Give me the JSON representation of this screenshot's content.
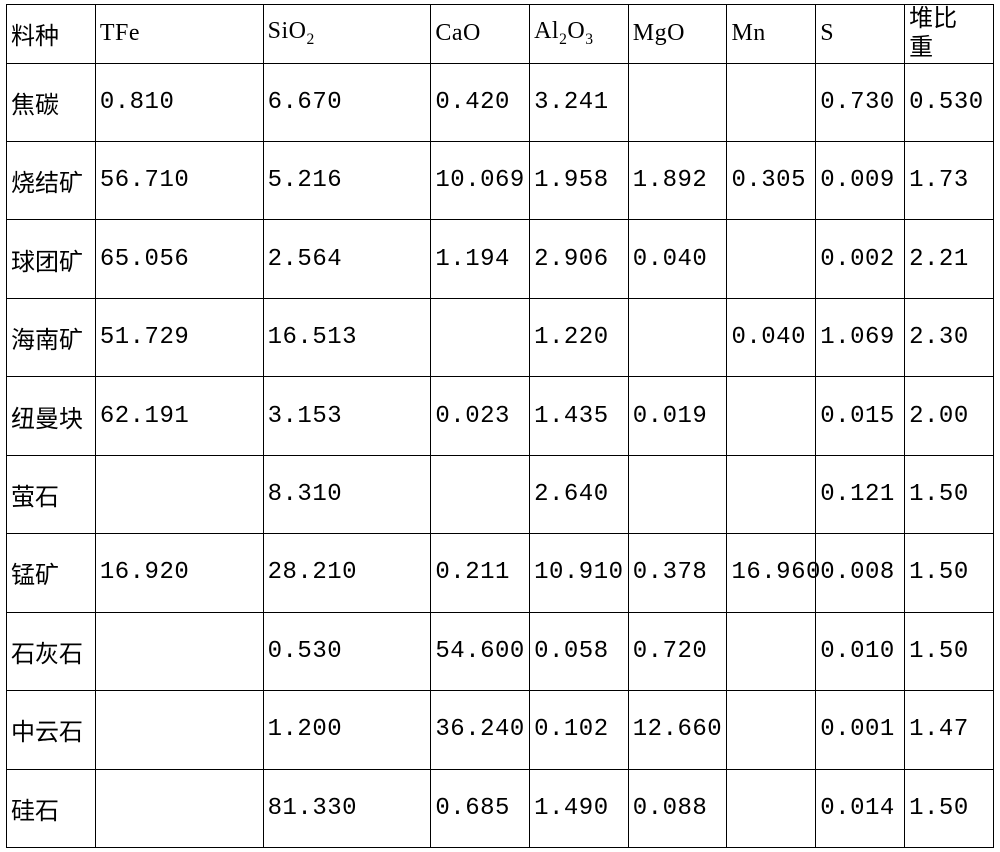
{
  "table": {
    "type": "table",
    "background_color": "#ffffff",
    "border_color": "#000000",
    "header_fontsize": 24,
    "cell_fontsize": 24,
    "cjk_font": "KaiTi",
    "number_font": "Courier New",
    "col_widths_pct": [
      9,
      17,
      17,
      10,
      10,
      10,
      9,
      9,
      9
    ],
    "columns": [
      {
        "key": "name",
        "label": "料种",
        "align": "left"
      },
      {
        "key": "TFe",
        "label": "TFe",
        "align": "left"
      },
      {
        "key": "SiO2",
        "label": "SiO₂",
        "align": "left"
      },
      {
        "key": "CaO",
        "label": "CaO",
        "align": "left"
      },
      {
        "key": "Al2O3",
        "label": "Al₂O₃",
        "align": "left"
      },
      {
        "key": "MgO",
        "label": "MgO",
        "align": "left"
      },
      {
        "key": "Mn",
        "label": "Mn",
        "align": "left"
      },
      {
        "key": "S",
        "label": "S",
        "align": "left"
      },
      {
        "key": "bulk",
        "label_line1": "堆比",
        "label_line2": "重",
        "align": "left"
      }
    ],
    "rows": [
      {
        "name": "焦碳",
        "TFe": "0.810",
        "SiO2": "6.670",
        "CaO": "0.420",
        "Al2O3": "3.241",
        "MgO": "",
        "Mn": "",
        "S": "0.730",
        "bulk": "0.530"
      },
      {
        "name": "烧结矿",
        "TFe": "56.710",
        "SiO2": "5.216",
        "CaO": "10.069",
        "Al2O3": "1.958",
        "MgO": "1.892",
        "Mn": "0.305",
        "S": "0.009",
        "bulk": "1.73"
      },
      {
        "name": "球团矿",
        "TFe": "65.056",
        "SiO2": "2.564",
        "CaO": "1.194",
        "Al2O3": "2.906",
        "MgO": "0.040",
        "Mn": "",
        "S": "0.002",
        "bulk": "2.21"
      },
      {
        "name": "海南矿",
        "TFe": "51.729",
        "SiO2": "16.513",
        "CaO": "",
        "Al2O3": "1.220",
        "MgO": "",
        "Mn": "0.040",
        "S": "1.069",
        "bulk": "2.30"
      },
      {
        "name": "纽曼块",
        "TFe": "62.191",
        "SiO2": "3.153",
        "CaO": "0.023",
        "Al2O3": "1.435",
        "MgO": "0.019",
        "Mn": "",
        "S": "0.015",
        "bulk": "2.00"
      },
      {
        "name": "萤石",
        "TFe": "",
        "SiO2": "8.310",
        "CaO": "",
        "Al2O3": "2.640",
        "MgO": "",
        "Mn": "",
        "S": "0.121",
        "bulk": "1.50"
      },
      {
        "name": "锰矿",
        "TFe": "16.920",
        "SiO2": "28.210",
        "CaO": "0.211",
        "Al2O3": "10.910",
        "MgO": "0.378",
        "Mn": "16.960",
        "S": "0.008",
        "bulk": "1.50"
      },
      {
        "name": "石灰石",
        "TFe": "",
        "SiO2": "0.530",
        "CaO": "54.600",
        "Al2O3": "0.058",
        "MgO": "0.720",
        "Mn": "",
        "S": "0.010",
        "bulk": "1.50"
      },
      {
        "name": "中云石",
        "TFe": "",
        "SiO2": "1.200",
        "CaO": "36.240",
        "Al2O3": "0.102",
        "MgO": "12.660",
        "Mn": "",
        "S": "0.001",
        "bulk": "1.47"
      },
      {
        "name": "硅石",
        "TFe": "",
        "SiO2": "81.330",
        "CaO": "0.685",
        "Al2O3": "1.490",
        "MgO": "0.088",
        "Mn": "",
        "S": "0.014",
        "bulk": "1.50"
      }
    ]
  }
}
